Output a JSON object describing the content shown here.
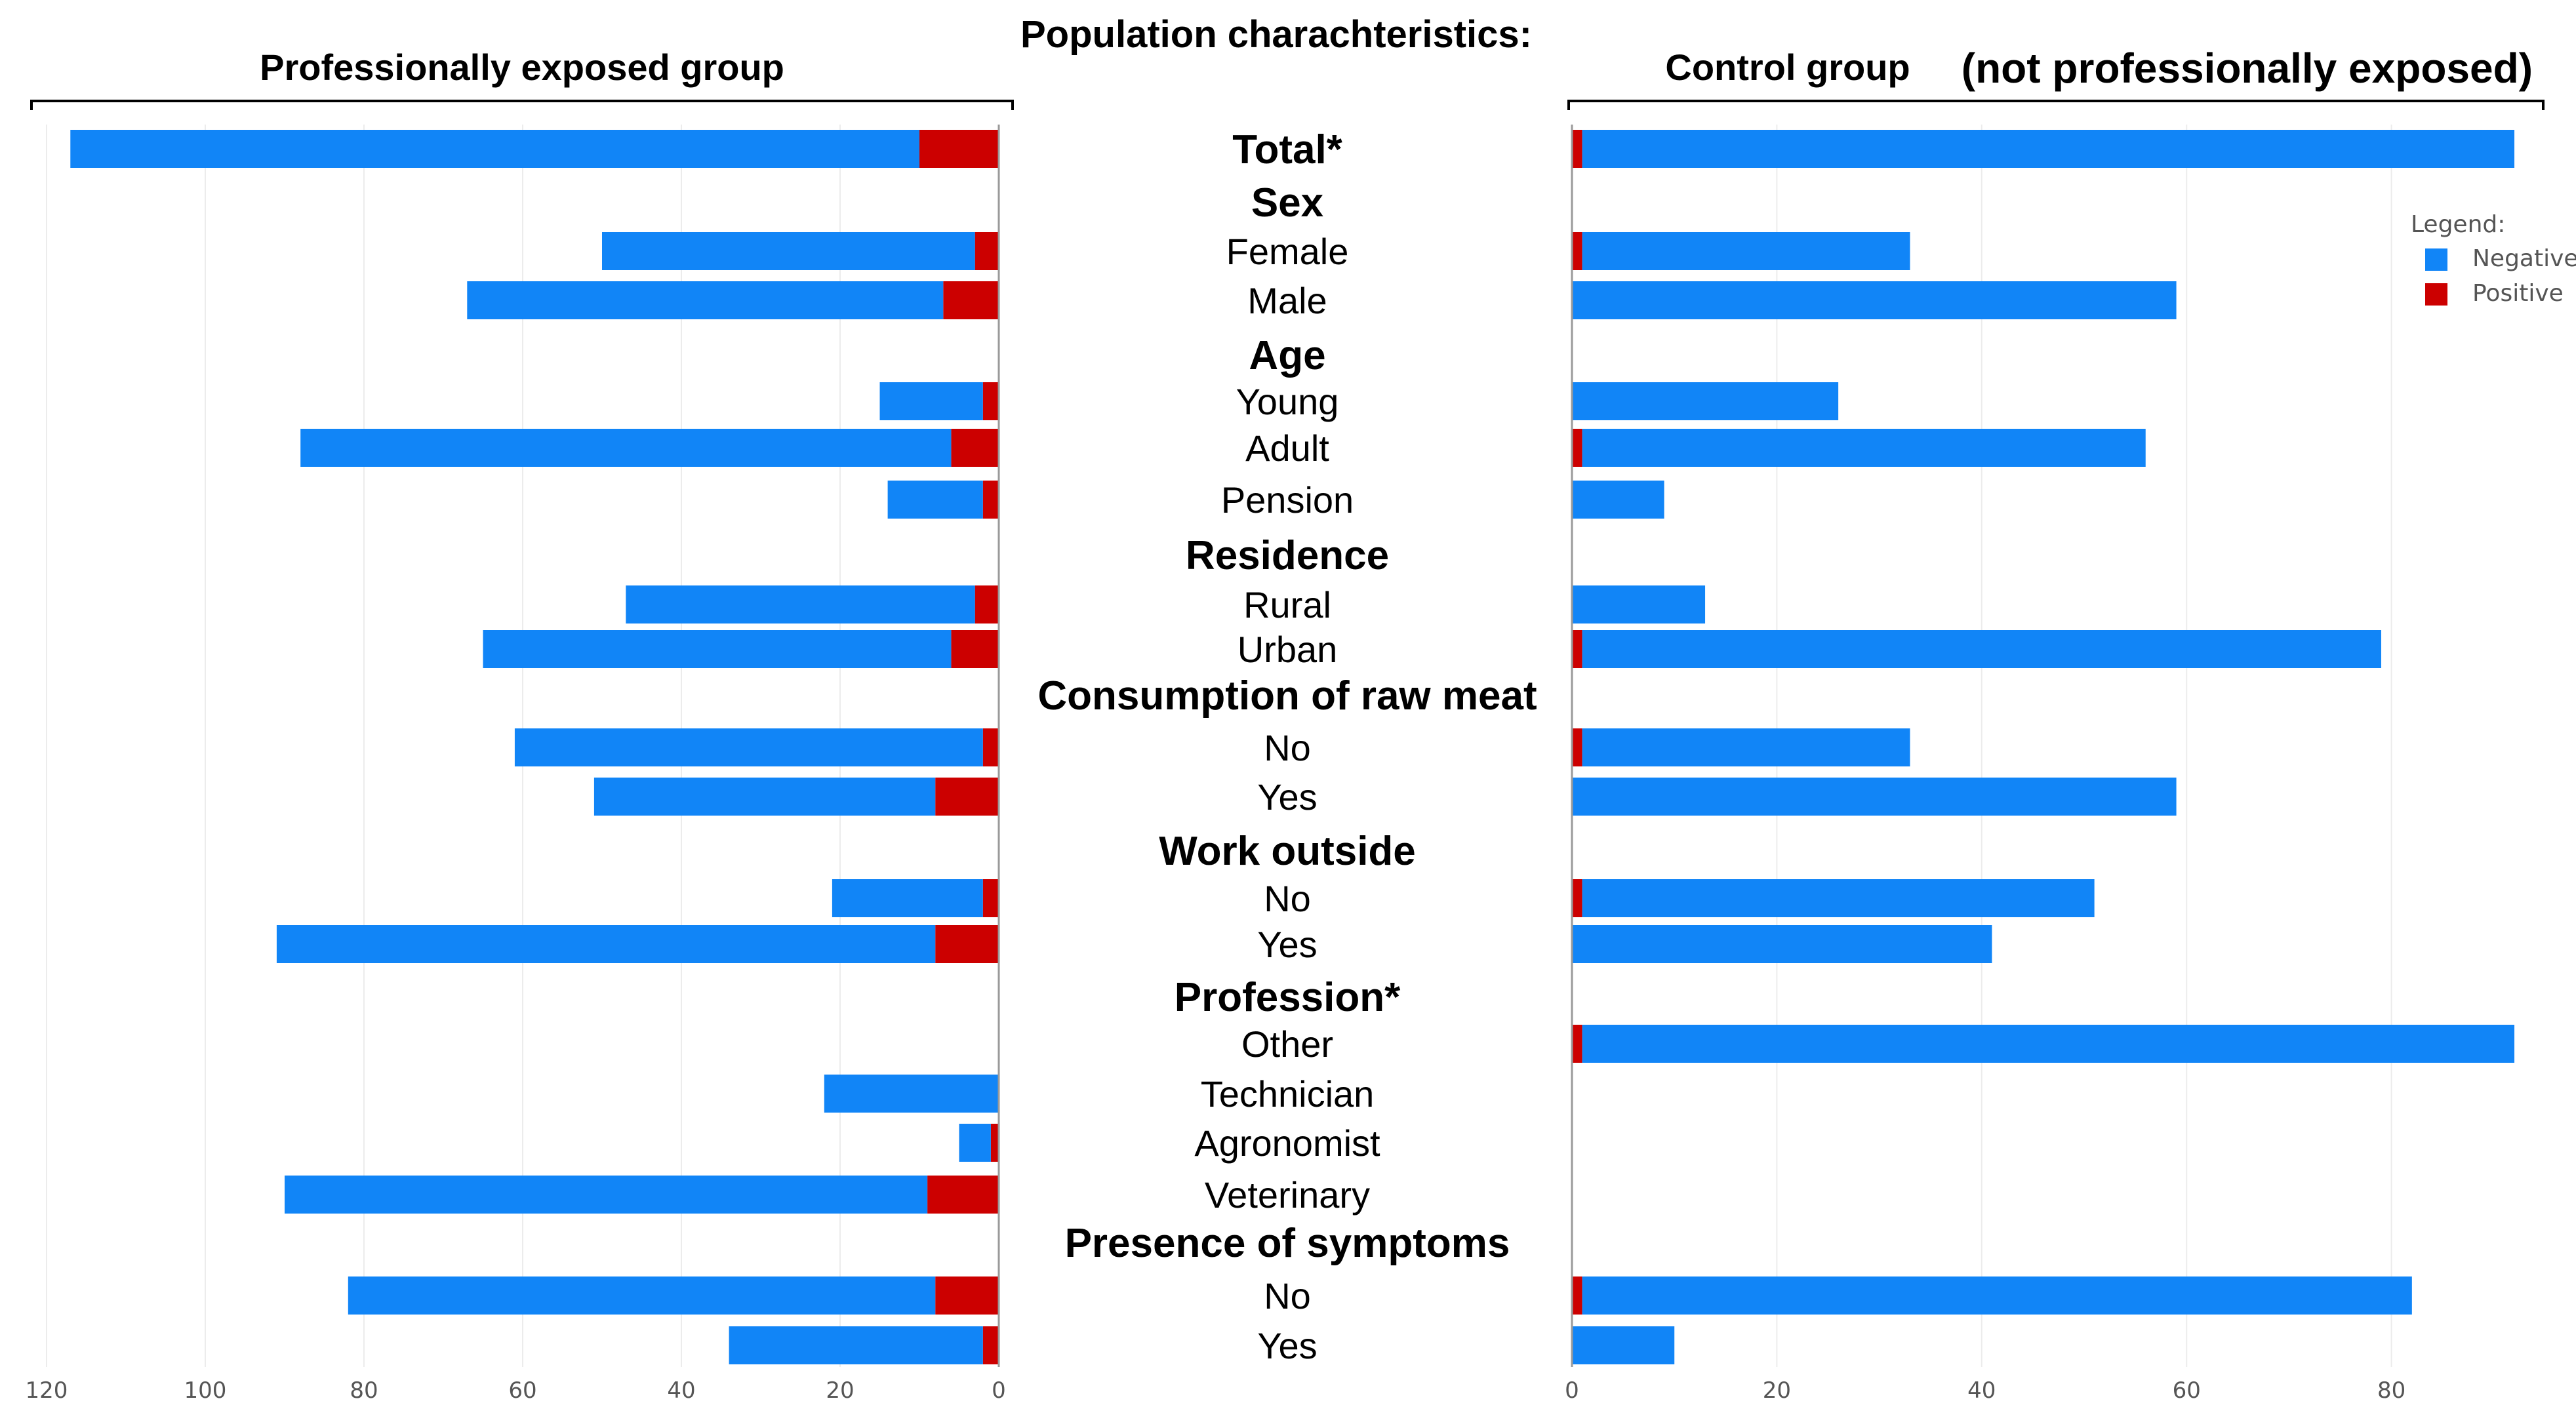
{
  "title": "Population charachteristics:",
  "left_panel_title": "Professionally exposed group",
  "right_panel_title": "Control group",
  "right_panel_subtitle": "(not professionally exposed)",
  "legend": {
    "title": "Legend:",
    "items": [
      {
        "label": "Negative",
        "color": "#1185f7"
      },
      {
        "label": "Positive",
        "color": "#cc0000"
      }
    ]
  },
  "chart_data": {
    "type": "bar",
    "orientation": "horizontal",
    "stacked": true,
    "left_axis": {
      "range": [
        0,
        120
      ],
      "ticks": [
        120,
        100,
        80,
        60,
        40,
        20,
        0
      ],
      "direction": "reversed",
      "grid": true
    },
    "right_axis": {
      "range": [
        0,
        92
      ],
      "ticks": [
        0,
        20,
        40,
        60,
        80
      ],
      "grid": true
    },
    "rows": [
      {
        "label": "Total*",
        "kind": "header",
        "bars": true,
        "exposed": {
          "positive": 10,
          "negative": 107
        },
        "control": {
          "positive": 1,
          "negative": 91
        }
      },
      {
        "label": "Sex",
        "kind": "header",
        "bars": false
      },
      {
        "label": "Female",
        "kind": "item",
        "bars": true,
        "exposed": {
          "positive": 3,
          "negative": 47
        },
        "control": {
          "positive": 1,
          "negative": 32
        }
      },
      {
        "label": "Male",
        "kind": "item",
        "bars": true,
        "exposed": {
          "positive": 7,
          "negative": 60
        },
        "control": {
          "positive": 0,
          "negative": 59
        }
      },
      {
        "label": "Age",
        "kind": "header",
        "bars": false
      },
      {
        "label": "Young",
        "kind": "item",
        "bars": true,
        "exposed": {
          "positive": 2,
          "negative": 13
        },
        "control": {
          "positive": 0,
          "negative": 26
        }
      },
      {
        "label": "Adult",
        "kind": "item",
        "bars": true,
        "exposed": {
          "positive": 6,
          "negative": 82
        },
        "control": {
          "positive": 1,
          "negative": 55
        }
      },
      {
        "label": "Pension",
        "kind": "item",
        "bars": true,
        "exposed": {
          "positive": 2,
          "negative": 12
        },
        "control": {
          "positive": 0,
          "negative": 9
        }
      },
      {
        "label": "Residence",
        "kind": "header",
        "bars": false
      },
      {
        "label": "Rural",
        "kind": "item",
        "bars": true,
        "exposed": {
          "positive": 3,
          "negative": 44
        },
        "control": {
          "positive": 0,
          "negative": 13
        }
      },
      {
        "label": "Urban",
        "kind": "item",
        "bars": true,
        "exposed": {
          "positive": 6,
          "negative": 59
        },
        "control": {
          "positive": 1,
          "negative": 78
        }
      },
      {
        "label": "Consumption of raw meat",
        "kind": "header",
        "bars": false
      },
      {
        "label": "No",
        "kind": "item",
        "bars": true,
        "exposed": {
          "positive": 2,
          "negative": 59
        },
        "control": {
          "positive": 1,
          "negative": 32
        }
      },
      {
        "label": "Yes",
        "kind": "item",
        "bars": true,
        "exposed": {
          "positive": 8,
          "negative": 43
        },
        "control": {
          "positive": 0,
          "negative": 59
        }
      },
      {
        "label": "Work outside",
        "kind": "header",
        "bars": false
      },
      {
        "label": "No",
        "kind": "item",
        "bars": true,
        "exposed": {
          "positive": 2,
          "negative": 19
        },
        "control": {
          "positive": 1,
          "negative": 50
        }
      },
      {
        "label": "Yes",
        "kind": "item",
        "bars": true,
        "exposed": {
          "positive": 8,
          "negative": 83
        },
        "control": {
          "positive": 0,
          "negative": 41
        }
      },
      {
        "label": "Profession*",
        "kind": "header",
        "bars": false
      },
      {
        "label": "Other",
        "kind": "item",
        "bars": true,
        "exposed": {
          "positive": 0,
          "negative": 0
        },
        "control": {
          "positive": 1,
          "negative": 91
        }
      },
      {
        "label": "Technician",
        "kind": "item",
        "bars": true,
        "exposed": {
          "positive": 0,
          "negative": 22
        },
        "control": {
          "positive": 0,
          "negative": 0
        }
      },
      {
        "label": "Agronomist",
        "kind": "item",
        "bars": true,
        "exposed": {
          "positive": 1,
          "negative": 4
        },
        "control": {
          "positive": 0,
          "negative": 0
        }
      },
      {
        "label": "Veterinary",
        "kind": "item",
        "bars": true,
        "exposed": {
          "positive": 9,
          "negative": 81
        },
        "control": {
          "positive": 0,
          "negative": 0
        }
      },
      {
        "label": "Presence of symptoms",
        "kind": "header",
        "bars": false
      },
      {
        "label": "No",
        "kind": "item",
        "bars": true,
        "exposed": {
          "positive": 8,
          "negative": 74
        },
        "control": {
          "positive": 1,
          "negative": 81
        }
      },
      {
        "label": "Yes",
        "kind": "item",
        "bars": true,
        "exposed": {
          "positive": 2,
          "negative": 32
        },
        "control": {
          "positive": 0,
          "negative": 10
        }
      }
    ]
  }
}
